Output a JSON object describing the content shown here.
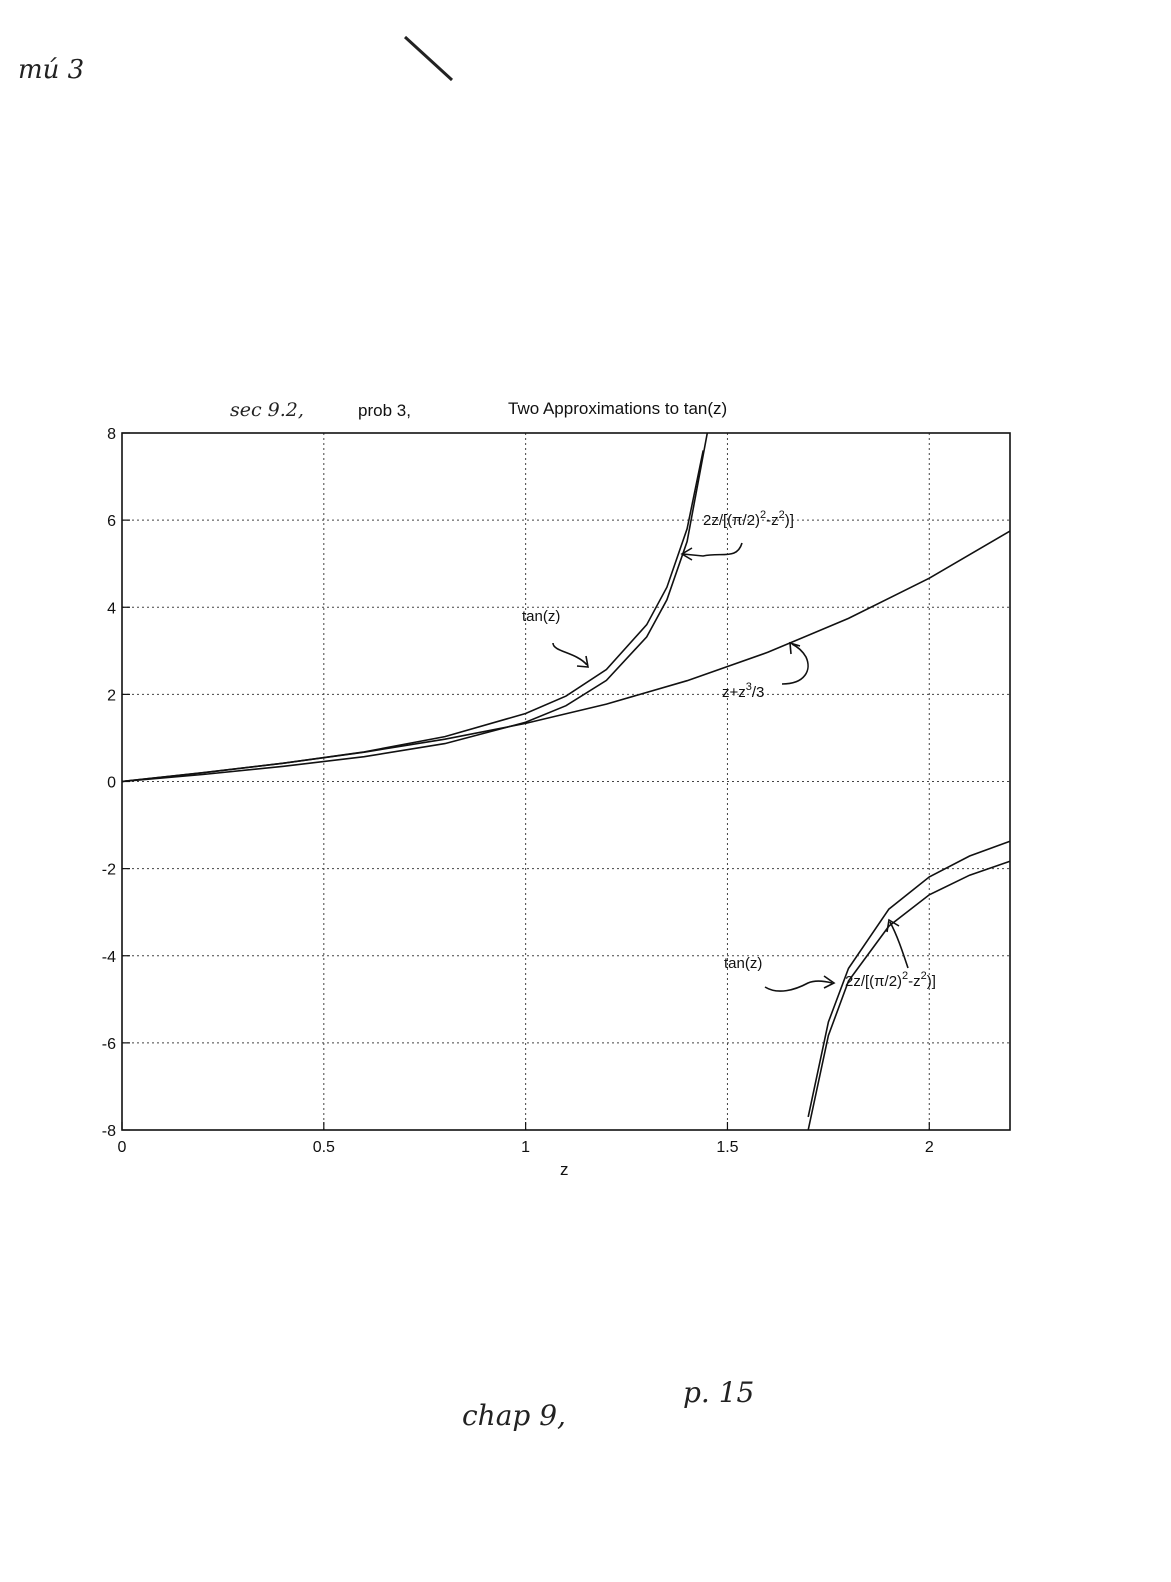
{
  "page": {
    "corner_scribble": "mú 3",
    "footer_chap": "chap 9,",
    "footer_page": "p. 15"
  },
  "chart_data": {
    "type": "line",
    "title_handwritten": "sec 9.2,",
    "title_prefix": "prob 3,",
    "title": "Two Approximations to tan(z)",
    "xlabel": "z",
    "ylabel": "",
    "xlim": [
      0,
      2.2
    ],
    "ylim": [
      -8,
      8
    ],
    "grid": true,
    "x_ticks": [
      "0",
      "0.5",
      "1",
      "1.5",
      "2"
    ],
    "x_tick_values": [
      0,
      0.5,
      1,
      1.5,
      2
    ],
    "y_ticks": [
      "8",
      "6",
      "4",
      "2",
      "0",
      "-2",
      "-4",
      "-6",
      "-8"
    ],
    "y_tick_values": [
      8,
      6,
      4,
      2,
      0,
      -2,
      -4,
      -6,
      -8
    ],
    "series": [
      {
        "key": "tan",
        "function": "tan(z)",
        "x": [
          0,
          0.2,
          0.4,
          0.6,
          0.8,
          1.0,
          1.1,
          1.2,
          1.3,
          1.35,
          1.4,
          1.44,
          1.7,
          1.75,
          1.8,
          1.9,
          2.0,
          2.1,
          2.2
        ],
        "y": [
          0,
          0.2,
          0.42,
          0.68,
          1.03,
          1.56,
          1.96,
          2.57,
          3.6,
          4.46,
          5.8,
          7.6,
          -7.7,
          -5.52,
          -4.29,
          -2.93,
          -2.19,
          -1.71,
          -1.37
        ]
      },
      {
        "key": "pole",
        "function": "2z/[(π/2)²-z²)]",
        "x": [
          0,
          0.2,
          0.4,
          0.6,
          0.8,
          1.0,
          1.1,
          1.2,
          1.3,
          1.35,
          1.4,
          1.45,
          1.7,
          1.75,
          1.8,
          1.9,
          2.0,
          2.1,
          2.2
        ],
        "y": [
          0,
          0.16,
          0.35,
          0.57,
          0.87,
          1.36,
          1.74,
          2.32,
          3.32,
          4.17,
          5.51,
          8.0,
          -8.0,
          -5.83,
          -4.58,
          -3.32,
          -2.6,
          -2.15,
          -1.83
        ]
      },
      {
        "key": "cubic",
        "function": "z+z³/3",
        "x": [
          0,
          0.2,
          0.4,
          0.6,
          0.8,
          1.0,
          1.2,
          1.4,
          1.6,
          1.8,
          2.0,
          2.2
        ],
        "y": [
          0,
          0.203,
          0.421,
          0.672,
          0.971,
          1.333,
          1.776,
          2.315,
          2.965,
          3.744,
          4.667,
          5.749
        ]
      }
    ],
    "annotations": {
      "tan_upper": "tan(z)",
      "tan_lower": "tan(z)",
      "cubic_label_base": "z+z",
      "cubic_label_exp": "3",
      "cubic_label_tail": "/3",
      "pole_base_1": "2z/[(π/2)",
      "pole_exp_1": "2",
      "pole_mid": "-z",
      "pole_exp_2": "2",
      "pole_end": ")]"
    }
  }
}
